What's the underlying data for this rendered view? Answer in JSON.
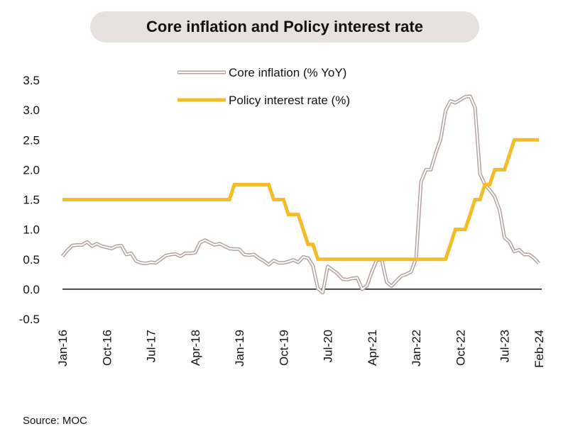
{
  "chart_data": {
    "type": "line",
    "title": "Core inflation and Policy interest rate",
    "ylim": [
      -0.5,
      3.5
    ],
    "y_ticks": [
      "3.5",
      "3.0",
      "2.5",
      "2.0",
      "1.5",
      "1.0",
      "0.5",
      "0.0",
      "-0.5"
    ],
    "x_tick_labels": [
      "Jan-16",
      "Oct-16",
      "Jul-17",
      "Apr-18",
      "Jan-19",
      "Oct-19",
      "Jul-20",
      "Apr-21",
      "Jan-22",
      "Oct-22",
      "Jul-23",
      "Feb-24"
    ],
    "x_start": "Jan-16",
    "x_end": "Feb-24",
    "legend_position": "top-center",
    "grid": false,
    "series": [
      {
        "name": "Core inflation (% YoY)",
        "color": "#b3a29e",
        "style": "double-outline",
        "points": [
          [
            "Jan-16",
            0.55
          ],
          [
            "Feb-16",
            0.65
          ],
          [
            "Mar-16",
            0.73
          ],
          [
            "Apr-16",
            0.74
          ],
          [
            "May-16",
            0.74
          ],
          [
            "Jun-16",
            0.79
          ],
          [
            "Jul-16",
            0.72
          ],
          [
            "Aug-16",
            0.76
          ],
          [
            "Sep-16",
            0.72
          ],
          [
            "Oct-16",
            0.7
          ],
          [
            "Nov-16",
            0.68
          ],
          [
            "Dec-16",
            0.72
          ],
          [
            "Jan-17",
            0.73
          ],
          [
            "Feb-17",
            0.58
          ],
          [
            "Mar-17",
            0.6
          ],
          [
            "Apr-17",
            0.47
          ],
          [
            "May-17",
            0.44
          ],
          [
            "Jun-17",
            0.43
          ],
          [
            "Jul-17",
            0.45
          ],
          [
            "Aug-17",
            0.44
          ],
          [
            "Sep-17",
            0.5
          ],
          [
            "Oct-17",
            0.56
          ],
          [
            "Nov-17",
            0.58
          ],
          [
            "Dec-17",
            0.59
          ],
          [
            "Jan-18",
            0.55
          ],
          [
            "Feb-18",
            0.6
          ],
          [
            "Mar-18",
            0.6
          ],
          [
            "Apr-18",
            0.61
          ],
          [
            "May-18",
            0.78
          ],
          [
            "Jun-18",
            0.82
          ],
          [
            "Jul-18",
            0.78
          ],
          [
            "Aug-18",
            0.74
          ],
          [
            "Sep-18",
            0.76
          ],
          [
            "Oct-18",
            0.72
          ],
          [
            "Nov-18",
            0.68
          ],
          [
            "Dec-18",
            0.67
          ],
          [
            "Jan-19",
            0.67
          ],
          [
            "Feb-19",
            0.58
          ],
          [
            "Mar-19",
            0.57
          ],
          [
            "Apr-19",
            0.58
          ],
          [
            "May-19",
            0.52
          ],
          [
            "Jun-19",
            0.47
          ],
          [
            "Jul-19",
            0.41
          ],
          [
            "Aug-19",
            0.48
          ],
          [
            "Sep-19",
            0.44
          ],
          [
            "Oct-19",
            0.44
          ],
          [
            "Nov-19",
            0.46
          ],
          [
            "Dec-19",
            0.49
          ],
          [
            "Jan-20",
            0.45
          ],
          [
            "Feb-20",
            0.54
          ],
          [
            "Mar-20",
            0.52
          ],
          [
            "Apr-20",
            0.39
          ],
          [
            "May-20",
            0.01
          ],
          [
            "Jun-20",
            -0.06
          ],
          [
            "Jul-20",
            0.38
          ],
          [
            "Aug-20",
            0.32
          ],
          [
            "Sep-20",
            0.26
          ],
          [
            "Oct-20",
            0.17
          ],
          [
            "Nov-20",
            0.16
          ],
          [
            "Dec-20",
            0.18
          ],
          [
            "Jan-21",
            0.19
          ],
          [
            "Feb-21",
            0.0
          ],
          [
            "Mar-21",
            0.06
          ],
          [
            "Apr-21",
            0.29
          ],
          [
            "May-21",
            0.49
          ],
          [
            "Jun-21",
            0.5
          ],
          [
            "Jul-21",
            0.12
          ],
          [
            "Aug-21",
            0.05
          ],
          [
            "Sep-21",
            0.14
          ],
          [
            "Oct-21",
            0.22
          ],
          [
            "Nov-21",
            0.25
          ],
          [
            "Dec-21",
            0.29
          ],
          [
            "Jan-22",
            0.52
          ],
          [
            "Feb-22",
            1.8
          ],
          [
            "Mar-22",
            2.0
          ],
          [
            "Apr-22",
            2.0
          ],
          [
            "May-22",
            2.28
          ],
          [
            "Jun-22",
            2.51
          ],
          [
            "Jul-22",
            2.99
          ],
          [
            "Aug-22",
            3.15
          ],
          [
            "Sep-22",
            3.12
          ],
          [
            "Oct-22",
            3.17
          ],
          [
            "Nov-22",
            3.22
          ],
          [
            "Dec-22",
            3.23
          ],
          [
            "Jan-23",
            3.04
          ],
          [
            "Feb-23",
            1.93
          ],
          [
            "Mar-23",
            1.75
          ],
          [
            "Apr-23",
            1.66
          ],
          [
            "May-23",
            1.55
          ],
          [
            "Jun-23",
            1.32
          ],
          [
            "Jul-23",
            0.86
          ],
          [
            "Aug-23",
            0.79
          ],
          [
            "Sep-23",
            0.63
          ],
          [
            "Oct-23",
            0.66
          ],
          [
            "Nov-23",
            0.58
          ],
          [
            "Dec-23",
            0.58
          ],
          [
            "Jan-24",
            0.52
          ],
          [
            "Feb-24",
            0.43
          ]
        ]
      },
      {
        "name": "Policy interest rate (%)",
        "color": "#f5bc2a",
        "style": "solid",
        "points": [
          [
            "Jan-16",
            1.5
          ],
          [
            "Nov-18",
            1.5
          ],
          [
            "Dec-18",
            1.75
          ],
          [
            "Jul-19",
            1.75
          ],
          [
            "Aug-19",
            1.5
          ],
          [
            "Oct-19",
            1.5
          ],
          [
            "Nov-19",
            1.25
          ],
          [
            "Jan-20",
            1.25
          ],
          [
            "Feb-20",
            1.0
          ],
          [
            "Mar-20",
            0.75
          ],
          [
            "Apr-20",
            0.75
          ],
          [
            "May-20",
            0.5
          ],
          [
            "Jul-22",
            0.5
          ],
          [
            "Aug-22",
            0.75
          ],
          [
            "Sep-22",
            1.0
          ],
          [
            "Nov-22",
            1.0
          ],
          [
            "Dec-22",
            1.25
          ],
          [
            "Jan-23",
            1.5
          ],
          [
            "Feb-23",
            1.5
          ],
          [
            "Mar-23",
            1.75
          ],
          [
            "Apr-23",
            1.75
          ],
          [
            "May-23",
            2.0
          ],
          [
            "Jul-23",
            2.0
          ],
          [
            "Aug-23",
            2.25
          ],
          [
            "Sep-23",
            2.5
          ],
          [
            "Feb-24",
            2.5
          ]
        ]
      }
    ]
  },
  "footer": {
    "source": "Source: MOC"
  }
}
